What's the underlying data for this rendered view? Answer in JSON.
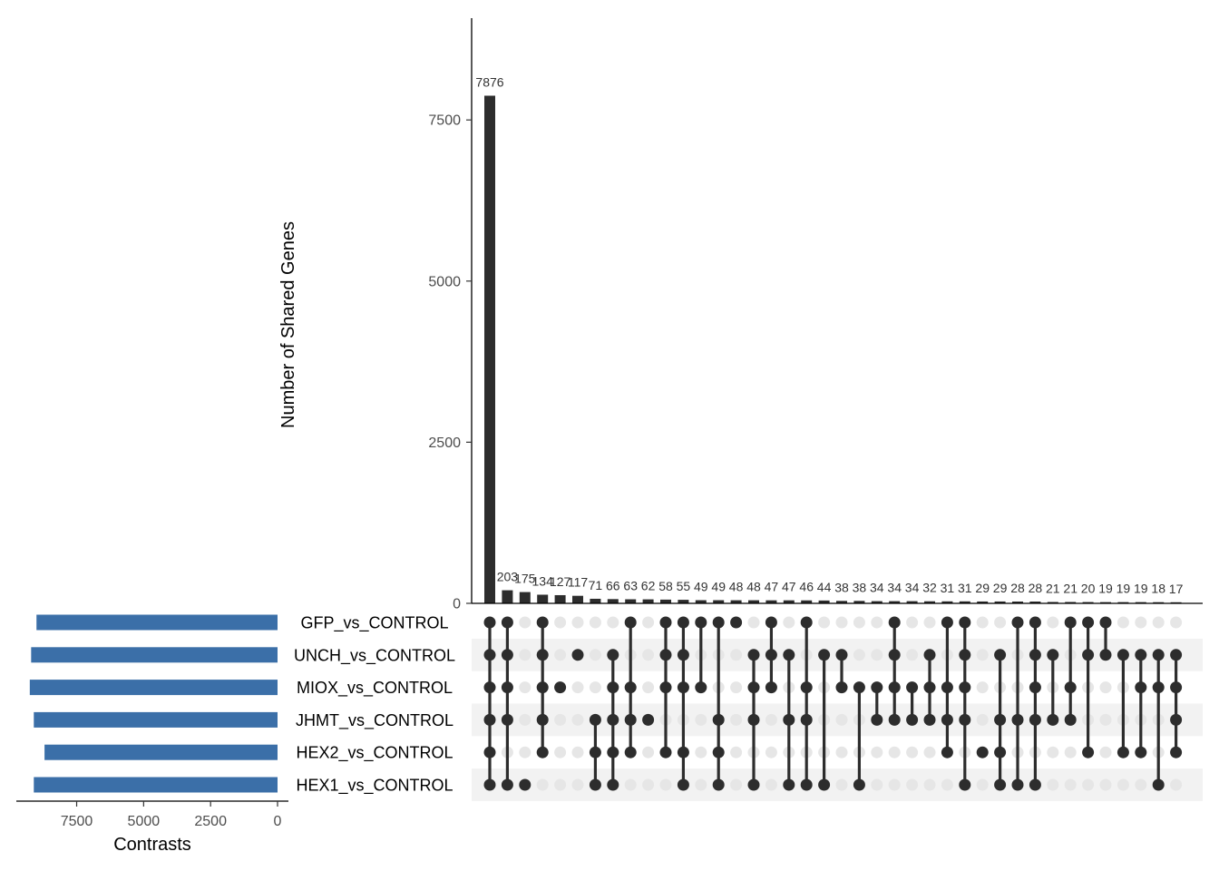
{
  "chart_data": {
    "type": "upset",
    "ylabel": "Number of Shared Genes",
    "xlabel_sets": "Contrasts",
    "intersection_axis": {
      "ylim": [
        0,
        9000
      ],
      "ticks": [
        0,
        2500,
        5000,
        7500
      ]
    },
    "set_size_axis": {
      "xlim": [
        9800,
        0
      ],
      "ticks": [
        7500,
        5000,
        2500,
        0
      ]
    },
    "sets": [
      {
        "name": "GFP_vs_CONTROL",
        "size": 9000
      },
      {
        "name": "UNCH_vs_CONTROL",
        "size": 9200
      },
      {
        "name": "MIOX_vs_CONTROL",
        "size": 9250
      },
      {
        "name": "JHMT_vs_CONTROL",
        "size": 9100
      },
      {
        "name": "HEX2_vs_CONTROL",
        "size": 8700
      },
      {
        "name": "HEX1_vs_CONTROL",
        "size": 9100
      }
    ],
    "intersections": [
      {
        "value": 7876,
        "sets": [
          "GFP_vs_CONTROL",
          "UNCH_vs_CONTROL",
          "MIOX_vs_CONTROL",
          "JHMT_vs_CONTROL",
          "HEX2_vs_CONTROL",
          "HEX1_vs_CONTROL"
        ]
      },
      {
        "value": 203,
        "sets": [
          "GFP_vs_CONTROL",
          "UNCH_vs_CONTROL",
          "MIOX_vs_CONTROL",
          "JHMT_vs_CONTROL",
          "HEX1_vs_CONTROL"
        ]
      },
      {
        "value": 175,
        "sets": [
          "HEX1_vs_CONTROL"
        ]
      },
      {
        "value": 134,
        "sets": [
          "GFP_vs_CONTROL",
          "UNCH_vs_CONTROL",
          "MIOX_vs_CONTROL",
          "JHMT_vs_CONTROL",
          "HEX2_vs_CONTROL"
        ]
      },
      {
        "value": 127,
        "sets": [
          "MIOX_vs_CONTROL"
        ]
      },
      {
        "value": 117,
        "sets": [
          "UNCH_vs_CONTROL"
        ]
      },
      {
        "value": 71,
        "sets": [
          "JHMT_vs_CONTROL",
          "HEX2_vs_CONTROL",
          "HEX1_vs_CONTROL"
        ]
      },
      {
        "value": 66,
        "sets": [
          "UNCH_vs_CONTROL",
          "MIOX_vs_CONTROL",
          "JHMT_vs_CONTROL",
          "HEX2_vs_CONTROL",
          "HEX1_vs_CONTROL"
        ]
      },
      {
        "value": 63,
        "sets": [
          "GFP_vs_CONTROL",
          "MIOX_vs_CONTROL",
          "JHMT_vs_CONTROL",
          "HEX2_vs_CONTROL"
        ]
      },
      {
        "value": 62,
        "sets": [
          "JHMT_vs_CONTROL"
        ]
      },
      {
        "value": 58,
        "sets": [
          "GFP_vs_CONTROL",
          "UNCH_vs_CONTROL",
          "MIOX_vs_CONTROL",
          "HEX2_vs_CONTROL"
        ]
      },
      {
        "value": 55,
        "sets": [
          "GFP_vs_CONTROL",
          "UNCH_vs_CONTROL",
          "MIOX_vs_CONTROL",
          "HEX2_vs_CONTROL",
          "HEX1_vs_CONTROL"
        ]
      },
      {
        "value": 49,
        "sets": [
          "GFP_vs_CONTROL",
          "MIOX_vs_CONTROL"
        ]
      },
      {
        "value": 49,
        "sets": [
          "GFP_vs_CONTROL",
          "JHMT_vs_CONTROL",
          "HEX2_vs_CONTROL",
          "HEX1_vs_CONTROL"
        ]
      },
      {
        "value": 48,
        "sets": [
          "GFP_vs_CONTROL"
        ]
      },
      {
        "value": 48,
        "sets": [
          "UNCH_vs_CONTROL",
          "MIOX_vs_CONTROL",
          "JHMT_vs_CONTROL",
          "HEX1_vs_CONTROL"
        ]
      },
      {
        "value": 47,
        "sets": [
          "GFP_vs_CONTROL",
          "UNCH_vs_CONTROL",
          "MIOX_vs_CONTROL"
        ]
      },
      {
        "value": 47,
        "sets": [
          "UNCH_vs_CONTROL",
          "JHMT_vs_CONTROL",
          "HEX1_vs_CONTROL"
        ]
      },
      {
        "value": 46,
        "sets": [
          "GFP_vs_CONTROL",
          "MIOX_vs_CONTROL",
          "JHMT_vs_CONTROL",
          "HEX1_vs_CONTROL"
        ]
      },
      {
        "value": 44,
        "sets": [
          "UNCH_vs_CONTROL",
          "HEX1_vs_CONTROL"
        ]
      },
      {
        "value": 38,
        "sets": [
          "UNCH_vs_CONTROL",
          "MIOX_vs_CONTROL"
        ]
      },
      {
        "value": 38,
        "sets": [
          "MIOX_vs_CONTROL",
          "HEX1_vs_CONTROL"
        ]
      },
      {
        "value": 34,
        "sets": [
          "MIOX_vs_CONTROL",
          "JHMT_vs_CONTROL"
        ]
      },
      {
        "value": 34,
        "sets": [
          "GFP_vs_CONTROL",
          "UNCH_vs_CONTROL",
          "MIOX_vs_CONTROL",
          "JHMT_vs_CONTROL"
        ]
      },
      {
        "value": 34,
        "sets": [
          "MIOX_vs_CONTROL",
          "JHMT_vs_CONTROL"
        ]
      },
      {
        "value": 32,
        "sets": [
          "UNCH_vs_CONTROL",
          "MIOX_vs_CONTROL",
          "JHMT_vs_CONTROL"
        ]
      },
      {
        "value": 31,
        "sets": [
          "GFP_vs_CONTROL",
          "MIOX_vs_CONTROL",
          "JHMT_vs_CONTROL",
          "HEX2_vs_CONTROL"
        ]
      },
      {
        "value": 31,
        "sets": [
          "GFP_vs_CONTROL",
          "UNCH_vs_CONTROL",
          "MIOX_vs_CONTROL",
          "JHMT_vs_CONTROL",
          "HEX1_vs_CONTROL"
        ]
      },
      {
        "value": 29,
        "sets": [
          "HEX2_vs_CONTROL"
        ]
      },
      {
        "value": 29,
        "sets": [
          "UNCH_vs_CONTROL",
          "JHMT_vs_CONTROL",
          "HEX2_vs_CONTROL",
          "HEX1_vs_CONTROL"
        ]
      },
      {
        "value": 28,
        "sets": [
          "GFP_vs_CONTROL",
          "JHMT_vs_CONTROL",
          "HEX1_vs_CONTROL"
        ]
      },
      {
        "value": 28,
        "sets": [
          "GFP_vs_CONTROL",
          "UNCH_vs_CONTROL",
          "MIOX_vs_CONTROL",
          "JHMT_vs_CONTROL",
          "HEX1_vs_CONTROL"
        ]
      },
      {
        "value": 21,
        "sets": [
          "UNCH_vs_CONTROL",
          "JHMT_vs_CONTROL"
        ]
      },
      {
        "value": 21,
        "sets": [
          "GFP_vs_CONTROL",
          "MIOX_vs_CONTROL",
          "JHMT_vs_CONTROL"
        ]
      },
      {
        "value": 20,
        "sets": [
          "GFP_vs_CONTROL",
          "UNCH_vs_CONTROL",
          "HEX2_vs_CONTROL"
        ]
      },
      {
        "value": 19,
        "sets": [
          "GFP_vs_CONTROL",
          "UNCH_vs_CONTROL"
        ]
      },
      {
        "value": 19,
        "sets": [
          "UNCH_vs_CONTROL",
          "HEX2_vs_CONTROL"
        ]
      },
      {
        "value": 19,
        "sets": [
          "UNCH_vs_CONTROL",
          "MIOX_vs_CONTROL",
          "HEX2_vs_CONTROL"
        ]
      },
      {
        "value": 18,
        "sets": [
          "UNCH_vs_CONTROL",
          "MIOX_vs_CONTROL",
          "HEX1_vs_CONTROL"
        ]
      },
      {
        "value": 17,
        "sets": [
          "UNCH_vs_CONTROL",
          "MIOX_vs_CONTROL",
          "JHMT_vs_CONTROL",
          "HEX2_vs_CONTROL"
        ]
      }
    ],
    "colors": {
      "bar": "#2d2d2d",
      "set_bar": "#3b6fa8",
      "dot_on": "#2d2d2d",
      "dot_off": "#e6e6e6",
      "stripe": "#f2f2f2"
    },
    "grid": false
  }
}
